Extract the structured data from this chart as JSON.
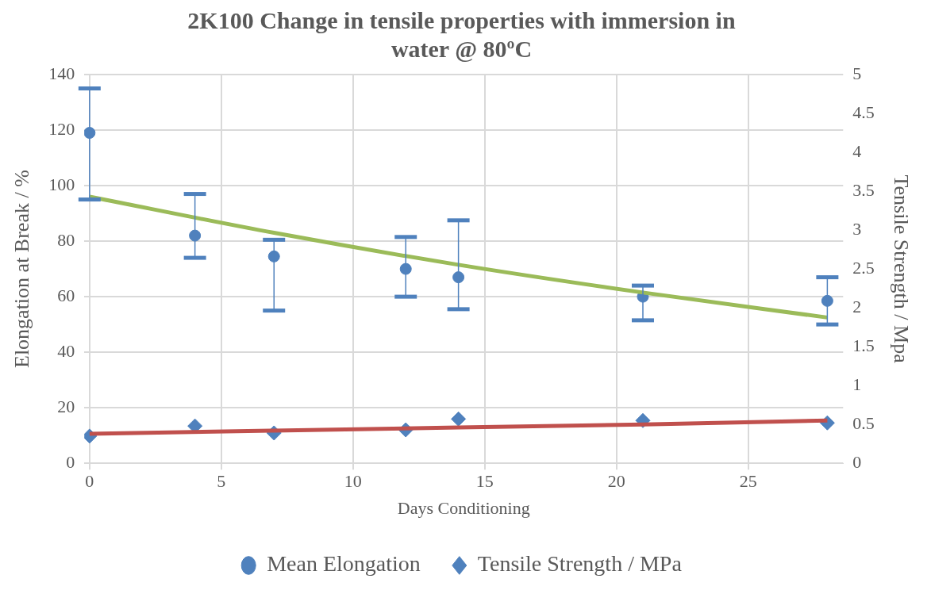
{
  "chart_data": {
    "type": "scatter",
    "title": "2K100 Change in tensile properties with immersion in water @ 80ºC",
    "xlabel": "Days Conditioning",
    "ylabel": "Elongation at Break / %",
    "y2label": "Tensile Strength / Mpa",
    "xlim": [
      -0.2,
      28.6
    ],
    "xticks": [
      0,
      5,
      10,
      15,
      20,
      25
    ],
    "ylim": [
      0,
      140
    ],
    "yticks": [
      0,
      20,
      40,
      60,
      80,
      100,
      120,
      140
    ],
    "y2lim": [
      0,
      5
    ],
    "y2ticks": [
      0,
      0.5,
      1,
      1.5,
      2,
      2.5,
      3,
      3.5,
      4,
      4.5,
      5
    ],
    "grid": true,
    "legend": "bottom",
    "series": [
      {
        "name": "Mean Elongation",
        "marker": "circle",
        "color": "#4f81bd",
        "x": [
          0,
          4,
          7,
          12,
          14,
          21,
          28
        ],
        "values": [
          119,
          82,
          74.5,
          70,
          67,
          60,
          58.5
        ],
        "errors": [
          [
            95,
            135
          ],
          [
            74,
            97
          ],
          [
            55,
            80.5
          ],
          [
            60,
            81.5
          ],
          [
            55.5,
            87.5
          ],
          [
            51.5,
            64
          ],
          [
            50,
            67
          ]
        ]
      },
      {
        "name": "Tensile Strength / MPa",
        "marker": "diamond",
        "axis": "y2",
        "color": "#4f81bd",
        "x": [
          0,
          4,
          7,
          12,
          14,
          21,
          28
        ],
        "values": [
          0.35,
          0.48,
          0.39,
          0.43,
          0.57,
          0.55,
          0.52
        ]
      },
      {
        "type": "line",
        "color": "#9bbb59",
        "x": [
          0,
          7,
          14,
          21,
          28
        ],
        "values": [
          96,
          83,
          71.5,
          61.5,
          52.5
        ]
      },
      {
        "type": "line",
        "axis": "y2",
        "color": "#c0504d",
        "x": [
          0,
          7,
          14,
          21,
          28
        ],
        "values": [
          0.38,
          0.42,
          0.46,
          0.5,
          0.55
        ]
      }
    ]
  }
}
